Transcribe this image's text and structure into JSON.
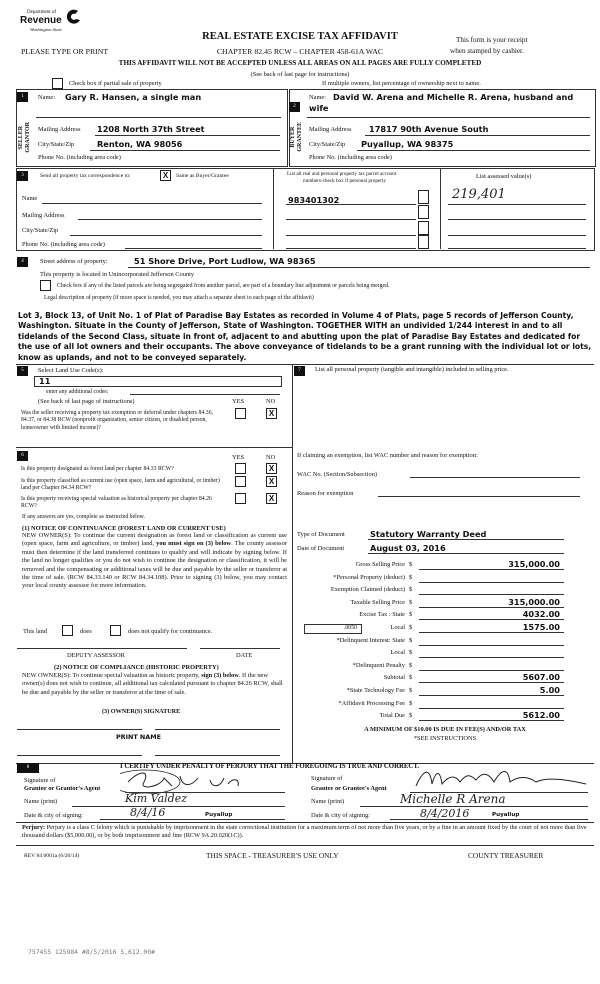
{
  "header": {
    "logo_text": [
      "Department of",
      "Revenue",
      "Washington State"
    ],
    "title": "REAL ESTATE EXCISE TAX AFFIDAVIT",
    "please_type": "PLEASE TYPE OR PRINT",
    "chapter": "CHAPTER 82.45 RCW – CHAPTER 458-61A WAC",
    "receipt_line1": "This form is your receipt",
    "receipt_line2": "when stamped by cashier.",
    "warning": "THIS AFFIDAVIT WILL NOT BE ACCEPTED UNLESS ALL AREAS ON ALL PAGES ARE FULLY COMPLETED",
    "see_back": "(See back of last page for instructions)",
    "partial_sale_label": "Check box if partial sale of property",
    "partial_sale_checked": false,
    "multiple_owners": "If multiple owners, list percentage of ownership next to name."
  },
  "seller": {
    "number": "1",
    "side_label": [
      "SELLER",
      "GRANTOR"
    ],
    "name_label": "Name:",
    "name": "Gary R. Hansen, a single man",
    "mailing_label": "Mailing Address",
    "mailing": "1208 North 37th Street",
    "city_label": "City/State/Zip",
    "city": "Renton, WA 98056",
    "phone_label": "Phone No. (including area code)"
  },
  "buyer": {
    "number": "2",
    "side_label": [
      "BUYER",
      "GRANTEE"
    ],
    "name_label": "Name:",
    "name_line1": "David W. Arena and Michelle R. Arena, husband and",
    "name_line2": "wife",
    "mailing_label": "Mailing Address",
    "mailing": "17817 90th Avenue South",
    "city_label": "City/State/Zip",
    "city": "Puyallup, WA 98375",
    "phone_label": "Phone No. (including area code)"
  },
  "section3": {
    "number": "3",
    "send_label": "Send all property tax correspondence to:",
    "same_as_buyer_checked": "X",
    "same_as_buyer_label": "Same as Buyer/Grantee",
    "name_label": "Name",
    "mailing_label": "Mailing Address",
    "city_label": "City/State/Zip",
    "phone_label": "Phone No. (including area code)",
    "parcel_header_line1": "List all real and personal property tax parcel account",
    "parcel_header_line2": "numbers-check box if personal property",
    "assessed_header": "List assessed value(s)",
    "parcels": [
      {
        "number": "983401302",
        "assessed": "219,401"
      }
    ]
  },
  "section4": {
    "number": "4",
    "street_label": "Street address of property:",
    "street": "51 Shore Drive, Port Ludlow, WA 98365",
    "located": "This property is located in Unincorporated Jefferson County",
    "segregated_label": "Check box if any of the listed parcels are being segregated from another parcel, are part of a boundary line adjustment or parcels being merged.",
    "legal_label": "Legal description of property (if more space is needed, you may attach a separate sheet to each page of the affidavit)",
    "legal_description": "Lot 3, Block 13, of Unit No. 1 of Plat of Paradise Bay Estates as recorded in Volume 4 of Plats, page 5 records of Jefferson County, Washington. Situate in the County of Jefferson, State of Washington. TOGETHER WITH an undivided 1/244 interest in and to all tidelands of the Second Class, situate in front of, adjacent to and abutting upon the plat of Paradise Bay Estates and dedicated for the use of all lot owners and their occupants. The above conveyance of tidelands to be a grant running with the individual lot or lots, know as uplands, and not to be conveyed separately."
  },
  "section5": {
    "number": "5",
    "land_use_label": "Select Land Use Code(s):",
    "land_use_code": "11",
    "additional_codes": "enter any additional codes:",
    "see_back": "(See back of last page of instructions)",
    "yes": "YES",
    "no": "NO",
    "question": "Was the seller receiving a property tax exemption or deferral under chapters 84.36, 84.37, or 84.38 RCW (nonprofit organization, senior citizen, or disabled person, homeowner with limited income)?",
    "answer_no": "X"
  },
  "section6": {
    "number": "6",
    "yes": "YES",
    "no": "NO",
    "questions": [
      {
        "text": "Is this property designated as forest land per chapter 84.33 RCW?",
        "answer_no": "X"
      },
      {
        "text": "Is this property classified as current use (open space, farm and agricultural, or timber) land per Chapter 84.34 RCW?",
        "answer_no": "X"
      },
      {
        "text": "Is this property receiving special valuation as historical property per chapter 84.26 RCW?",
        "answer_no": "X"
      }
    ],
    "if_yes": "If any answers are yes, complete as instructed below.",
    "notice1_title": "(1) NOTICE OF CONTINUANCE (FOREST LAND OR CURRENT USE)",
    "notice1_text_a": "NEW OWNER(S): To continue the current designation as forest land or classification as current use (open space, farm and agriculture, or timber) land, ",
    "notice1_bold": "you must sign on (3) below",
    "notice1_text_b": ". The county assessor must then determine if the land transferred continues to qualify and will indicate by signing below. If the land no longer qualifies or you do not wish to continue the designation or classification, it will be removed and the compensating or additional taxes will be due and payable by the seller or transferor at the time of sale. (RCW 84.33.140 or RCW 84.34.108). Prior to signing (3) below, you may contact your local county assessor for more information.",
    "this_land": "This land",
    "does": "does",
    "does_not": "does not qualify for continuance.",
    "deputy_assessor": "DEPUTY ASSESSOR",
    "date": "DATE",
    "notice2_title": "(2) NOTICE OF COMPLIANCE (HISTORIC PROPERTY)",
    "notice2_text_a": "NEW OWNER(S): To continue special valuation as historic property, ",
    "notice2_bold": "sign (3) below",
    "notice2_text_b": ". If the new owner(s) does not wish to continue, all additional tax calculated pursuant to chapter 84.26 RCW, shall be due and payable by the seller or transferor at the time of sale.",
    "owner_signature": "(3) OWNER(S) SIGNATURE",
    "print_name": "PRINT NAME"
  },
  "section7": {
    "number": "7",
    "personal_property_label": "List all personal property (tangible and intangible) included in selling price.",
    "exemption_label": "If claiming an exemption, list WAC number and reason for exemption:",
    "wac_label": "WAC No. (Section/Subsection)",
    "reason_label": "Reason for exemption",
    "type_label": "Type of Document",
    "type": "Statutory Warranty Deed",
    "date_label": "Date of Document",
    "date": "August 03, 2016"
  },
  "totals": {
    "rows": [
      {
        "label": "Gross Selling Price",
        "value": "315,000.00"
      },
      {
        "label": "*Personal Property (deduct)",
        "value": ""
      },
      {
        "label": "Exemption Claimed (deduct)",
        "value": ""
      },
      {
        "label": "Taxable Selling Price",
        "value": "315,000.00"
      },
      {
        "label": "Excise Tax  :  State",
        "value": "4032.00"
      },
      {
        "label": "Local",
        "value": "1575.00"
      },
      {
        "label": "*Delinquent Interest:  State",
        "value": ""
      },
      {
        "label": "Local",
        "value": ""
      },
      {
        "label": "*Delinquent Penalty",
        "value": ""
      },
      {
        "label": "Subtotal",
        "value": "5607.00"
      },
      {
        "label": "*State Technology Fee",
        "value": "5.00"
      },
      {
        "label": "*Affidavit Processing Fee",
        "value": ""
      },
      {
        "label": "Total Due",
        "value": "5612.00"
      }
    ],
    "currency": "$",
    "local_rate": ".0050",
    "minimum": "A MINIMUM OF $10.00 IS DUE IN FEE(S) AND/OR TAX",
    "see_instructions": "*SEE INSTRUCTIONS"
  },
  "section8": {
    "number": "8",
    "certify": "I CERTIFY UNDER PENALTY OF PERJURY THAT THE FOREGOING IS TRUE AND CORRECT.",
    "grantor_sig_label1": "Signature of",
    "grantor_sig_label2": "Grantor or Grantor's Agent",
    "grantor_name_label": "Name (print)",
    "grantor_name": "Kim Valdez",
    "grantor_date_label": "Date & city of signing:",
    "grantor_date": "8/4/16",
    "grantor_city": "Puyallup",
    "grantee_sig_label1": "Signature of",
    "grantee_sig_label2": "Grantee or Grantee's Agent",
    "grantee_name_label": "Name (print)",
    "grantee_name": "Michelle R Arena",
    "grantee_date_label": "Date & city of signing:",
    "grantee_date": "8/4/2016",
    "grantee_city": "Puyallup",
    "perjury_bold": "Perjury:",
    "perjury_text": "Perjury is a class C felony which is punishable by imprisonment in the state correctional institution for a maximum term of not more than five years, or by a fine in an amount fixed by the court of not more than five thousand dollars ($5,000.00), or by both imprisonment and fine (RCW 9A.20.020(1C))."
  },
  "footer": {
    "rev": "REV 84 0001a (6/26/14)",
    "treasurer_only": "THIS SPACE - TREASURER'S USE ONLY",
    "county_treasurer": "COUNTY TREASURER",
    "stamp": "757455 125984 #8/5/2016 5,612.00#"
  }
}
